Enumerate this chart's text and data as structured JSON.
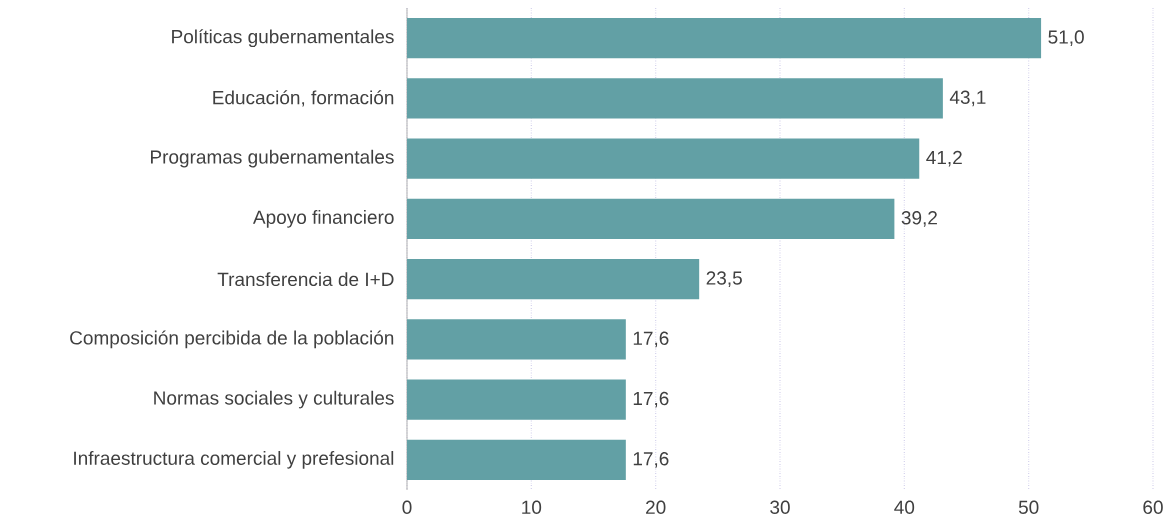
{
  "chart_data": {
    "type": "bar",
    "orientation": "horizontal",
    "categories": [
      "Políticas gubernamentales",
      "Educación, formación",
      "Programas gubernamentales",
      "Apoyo financiero",
      "Transferencia de I+D",
      "Composición percibida de la población",
      "Normas sociales y culturales",
      "Infraestructura comercial y prefesional"
    ],
    "values": [
      51.0,
      43.1,
      41.2,
      39.2,
      23.5,
      17.6,
      17.6,
      17.6
    ],
    "value_labels": [
      "51,0",
      "43,1",
      "41,2",
      "39,2",
      "23,5",
      "17,6",
      "17,6",
      "17,6"
    ],
    "color": "#62a0a5",
    "xlim": [
      0,
      60
    ],
    "xticks": [
      0,
      10,
      20,
      30,
      40,
      50,
      60
    ],
    "grid": "x"
  }
}
